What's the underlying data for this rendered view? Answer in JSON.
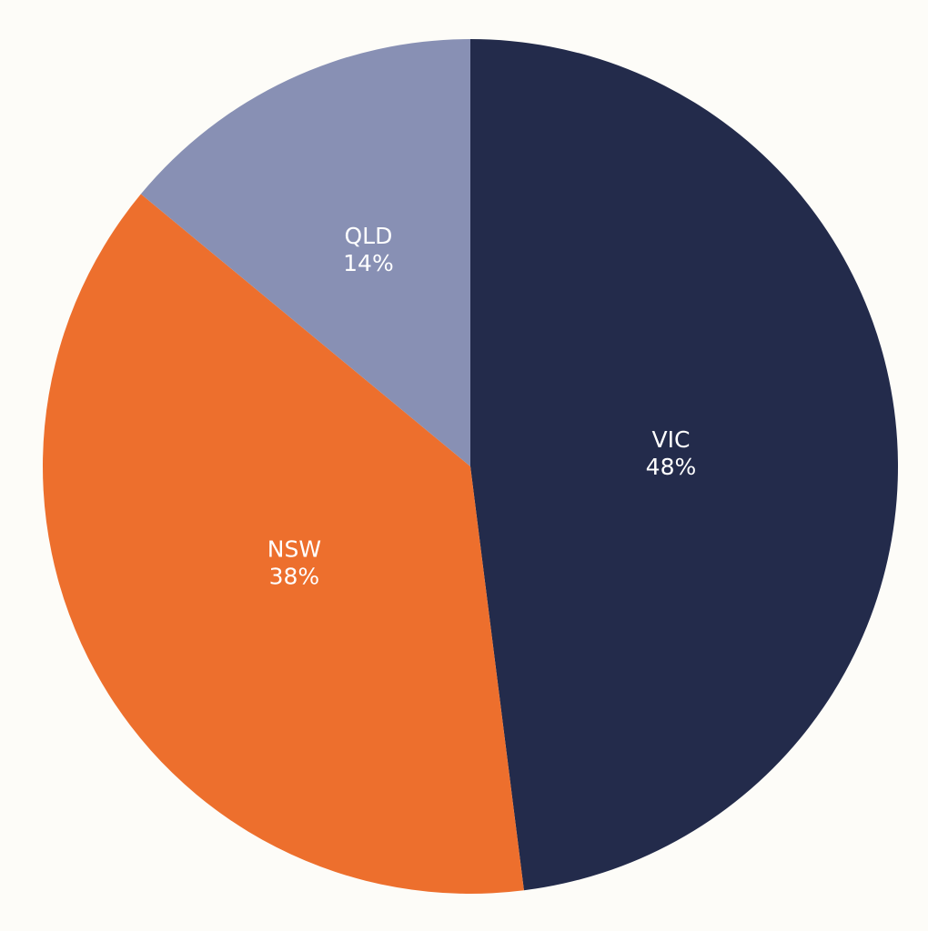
{
  "chart_data": {
    "type": "pie",
    "categories": [
      "VIC",
      "NSW",
      "QLD"
    ],
    "values": [
      48,
      38,
      14
    ],
    "value_labels": [
      "48%",
      "38%",
      "14%"
    ],
    "colors": [
      "#232b4b",
      "#ed6f2d",
      "#8890b4"
    ]
  }
}
